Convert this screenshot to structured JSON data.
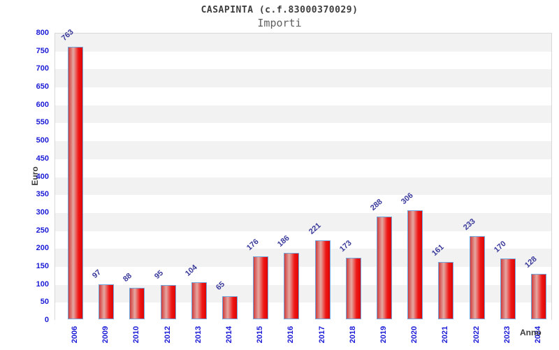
{
  "header": {
    "title": "CASAPINTA (c.f.83000370029)",
    "subtitle": "Importi"
  },
  "chart_data": {
    "type": "bar",
    "title": "CASAPINTA (c.f.83000370029)",
    "subtitle": "Importi",
    "xlabel": "Anno",
    "ylabel": "Euro",
    "categories": [
      "2006",
      "2009",
      "2010",
      "2012",
      "2013",
      "2014",
      "2015",
      "2016",
      "2017",
      "2018",
      "2019",
      "2020",
      "2021",
      "2022",
      "2023",
      "2024"
    ],
    "values": [
      763,
      97,
      88,
      95,
      104,
      65,
      176,
      186,
      221,
      173,
      288,
      306,
      161,
      233,
      170,
      128
    ],
    "ylim": [
      0,
      800
    ],
    "yticks": [
      0,
      50,
      100,
      150,
      200,
      250,
      300,
      350,
      400,
      450,
      500,
      550,
      600,
      650,
      700,
      750,
      800
    ],
    "grid": "alternating-horizontal-bands",
    "legend": "none",
    "bar_value_labels": "rotated-45"
  },
  "colors": {
    "title_gray": "#3d3d3d",
    "subtitle_gray": "#5f5f5f",
    "axis_label_blue": "#1a1ad6",
    "value_label_navy": "#39399b",
    "bar_border": "#6fa8dc",
    "bar_red_edge": "#d13c3c",
    "bar_red_highlight": "#e5a9a2",
    "bar_red_main": "#ef1616",
    "bar_red_right": "#df0505",
    "band_gray": "#f2f2f2",
    "band_white": "#ffffff",
    "plot_border": "#d8d8d8"
  }
}
